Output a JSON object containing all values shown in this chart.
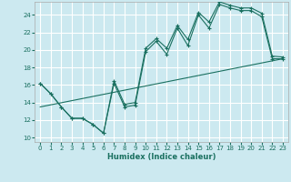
{
  "xlabel": "Humidex (Indice chaleur)",
  "bg_color": "#cce9f0",
  "grid_color": "#ffffff",
  "line_color": "#1a7060",
  "xlim": [
    -0.5,
    23.5
  ],
  "ylim": [
    9.5,
    25.5
  ],
  "xticks": [
    0,
    1,
    2,
    3,
    4,
    5,
    6,
    7,
    8,
    9,
    10,
    11,
    12,
    13,
    14,
    15,
    16,
    17,
    18,
    19,
    20,
    21,
    22,
    23
  ],
  "yticks": [
    10,
    12,
    14,
    16,
    18,
    20,
    22,
    24
  ],
  "curve1_x": [
    0,
    1,
    2,
    3,
    4,
    5,
    6,
    7,
    8,
    9,
    10,
    11,
    12,
    13,
    14,
    15,
    16,
    17,
    18,
    19,
    20,
    21,
    22,
    23
  ],
  "curve1_y": [
    16.2,
    15.0,
    13.5,
    12.2,
    12.2,
    11.5,
    10.5,
    16.2,
    13.5,
    13.7,
    19.8,
    21.0,
    19.5,
    22.5,
    20.5,
    24.0,
    22.5,
    25.2,
    24.8,
    24.5,
    24.5,
    23.8,
    19.0,
    19.0
  ],
  "curve2_x": [
    0,
    1,
    2,
    3,
    4,
    5,
    6,
    7,
    8,
    9,
    10,
    11,
    12,
    13,
    14,
    15,
    16,
    17,
    18,
    19,
    20,
    21,
    22,
    23
  ],
  "curve2_y": [
    16.2,
    15.0,
    13.5,
    12.2,
    12.2,
    11.5,
    10.5,
    16.5,
    13.8,
    14.0,
    20.2,
    21.3,
    20.2,
    22.8,
    21.2,
    24.3,
    23.2,
    25.5,
    25.1,
    24.8,
    24.8,
    24.2,
    19.3,
    19.2
  ],
  "trend_x": [
    0,
    23
  ],
  "trend_y": [
    13.5,
    19.0
  ],
  "xlabel_fontsize": 6.0,
  "tick_fontsize": 5.0
}
